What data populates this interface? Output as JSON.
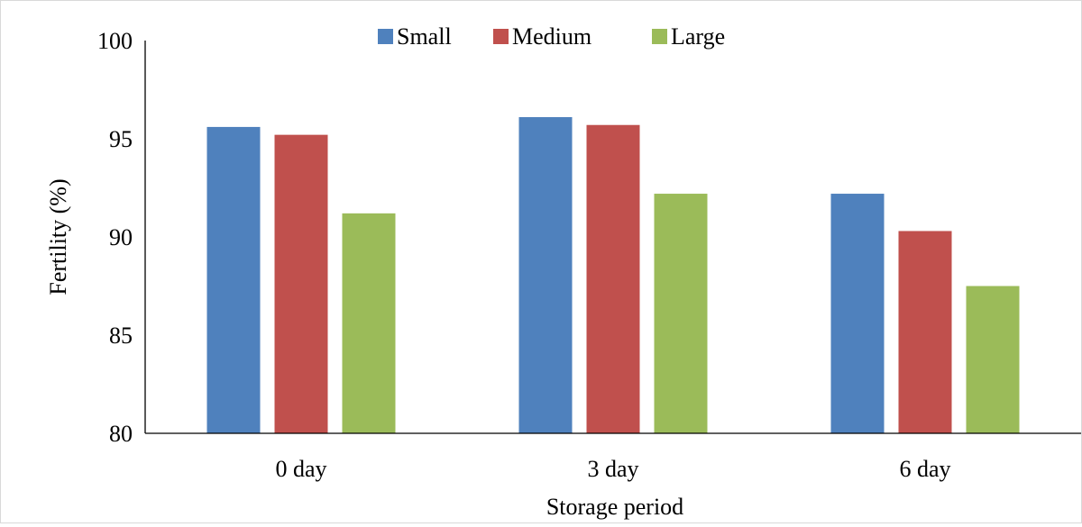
{
  "chart_data": {
    "type": "bar",
    "categories": [
      "0 day",
      "3 day",
      "6 day"
    ],
    "series": [
      {
        "name": "Small",
        "values": [
          95.6,
          96.1,
          92.2
        ],
        "color": "#4f81bd"
      },
      {
        "name": "Medium",
        "values": [
          95.2,
          95.7,
          90.3
        ],
        "color": "#c0504d"
      },
      {
        "name": "Large",
        "values": [
          91.2,
          92.2,
          87.5
        ],
        "color": "#9bbb59"
      }
    ],
    "xlabel": "Storage period",
    "ylabel": "Fertility (%)",
    "ylim": [
      80,
      100
    ],
    "yticks": [
      "80",
      "85",
      "90",
      "95",
      "100"
    ],
    "grid": false,
    "legend_position": "top"
  }
}
